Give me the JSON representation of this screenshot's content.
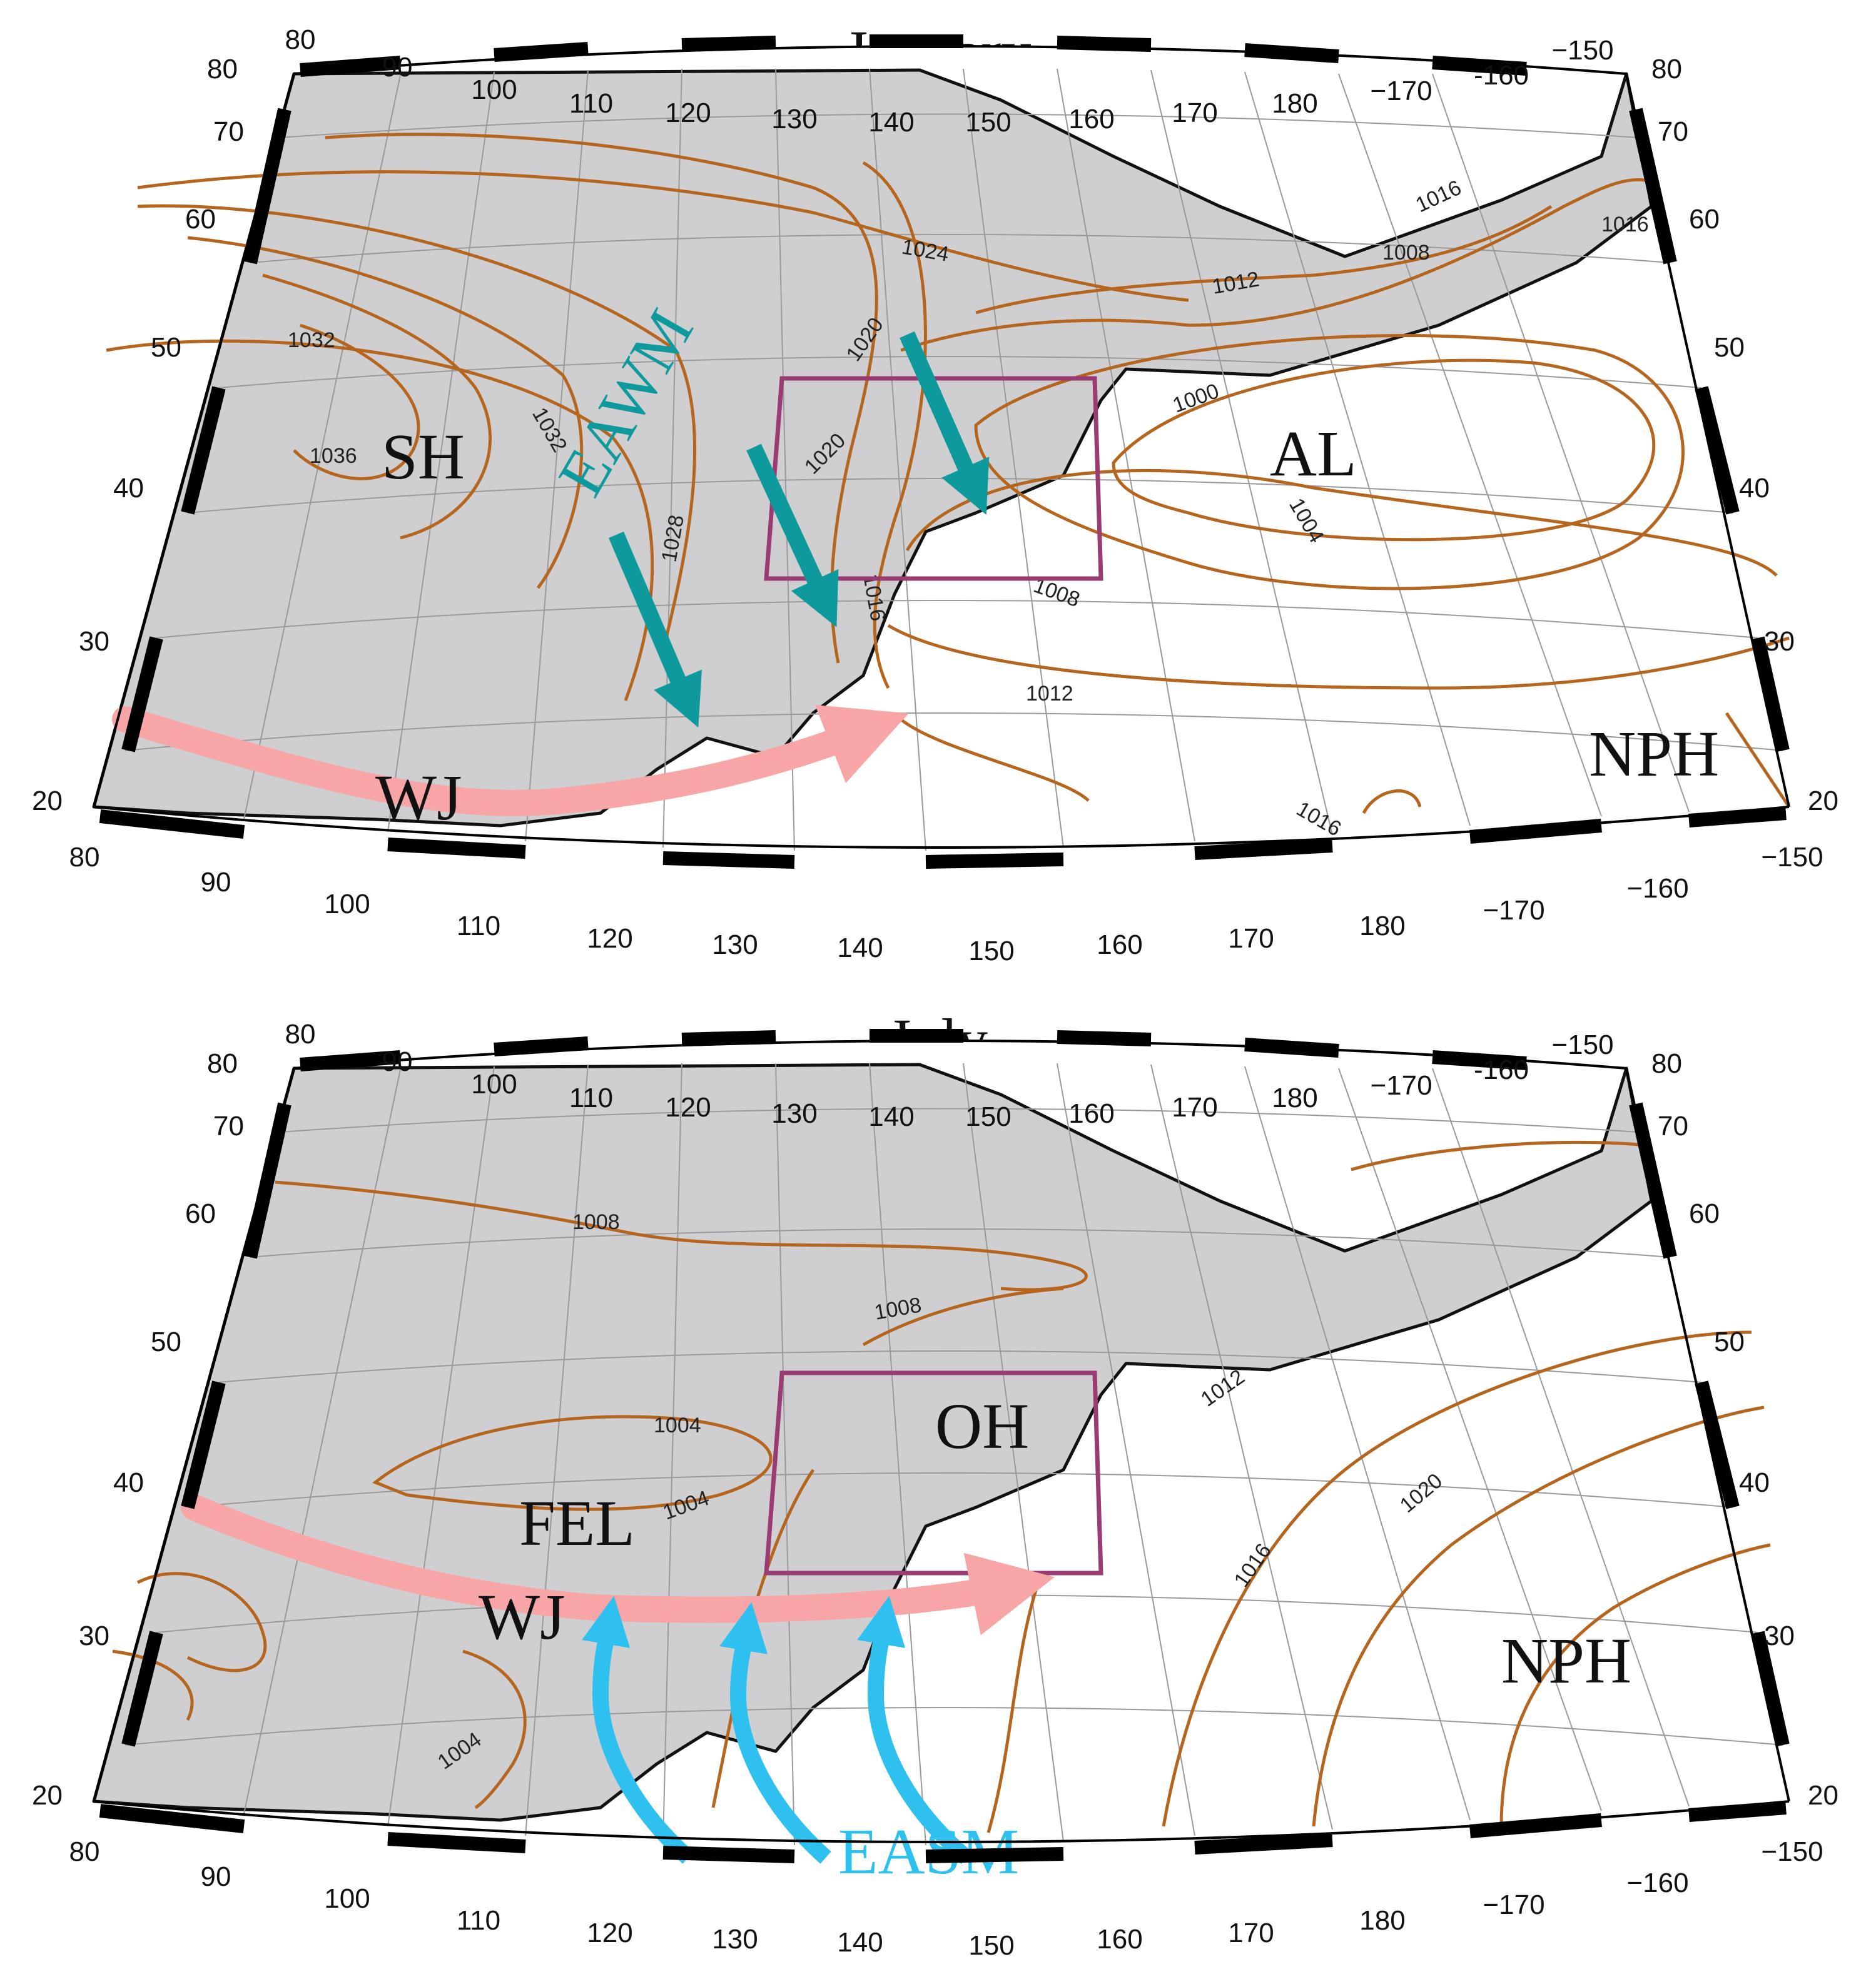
{
  "colors": {
    "land": "#cfcfd1",
    "isobar": "#b5651d",
    "jet": "#f7a5a7",
    "winter_monsoon": "#0e9a9c",
    "summer_monsoon": "#2ec1ef",
    "box": "#9b3b73"
  },
  "lon_labels_top": [
    "80",
    "90",
    "100",
    "110",
    "120",
    "130",
    "140",
    "150",
    "160",
    "170",
    "180",
    "−170",
    "-160",
    "−150"
  ],
  "lon_labels_bottom": [
    "80",
    "90",
    "100",
    "110",
    "120",
    "130",
    "140",
    "150",
    "160",
    "170",
    "180",
    "−170",
    "−160",
    "−150"
  ],
  "lat_labels": [
    "80",
    "70",
    "60",
    "50",
    "40",
    "30",
    "20"
  ],
  "maps": {
    "january": {
      "title": "January",
      "isobar_labels": [
        "1032",
        "1036",
        "1032",
        "1028",
        "1024",
        "1020",
        "1016",
        "1016",
        "1008",
        "1012",
        "1000",
        "1004",
        "1008",
        "1012",
        "1016",
        "1020",
        "1016"
      ],
      "features": {
        "sh": "SH",
        "al": "AL",
        "nph": "NPH",
        "wj": "WJ",
        "eawm": "EAWM"
      }
    },
    "july": {
      "title": "July",
      "isobar_labels": [
        "1008",
        "1008",
        "1004",
        "1004",
        "1004",
        "1012",
        "1020",
        "1016"
      ],
      "features": {
        "oh": "OH",
        "fel": "FEL",
        "wj": "WJ",
        "nph": "NPH",
        "easm": "EASM"
      }
    }
  }
}
